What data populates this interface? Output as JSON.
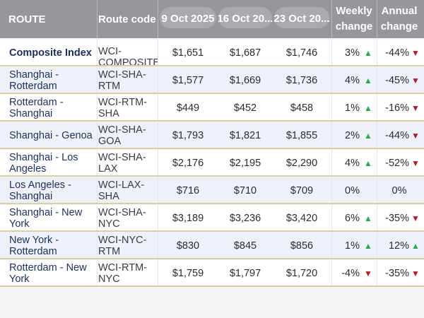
{
  "headers": {
    "route": "ROUTE",
    "code": "Route code",
    "d1": "9 Oct 2025",
    "d2": "16 Oct 20...",
    "d3": "23 Oct 20...",
    "weekly": [
      "Weekly",
      "change"
    ],
    "annual": [
      "Annual",
      "change"
    ]
  },
  "rows": [
    {
      "route": "Composite Index",
      "code": "WCI-COMPOSITE",
      "d1": "$1,651",
      "d2": "$1,687",
      "d3": "$1,746",
      "weekly": "3%",
      "weekly_dir": "up",
      "annual": "-44%",
      "annual_dir": "down",
      "bold": true
    },
    {
      "route": "Shanghai - Rotterdam",
      "code": "WCI-SHA-RTM",
      "d1": "$1,577",
      "d2": "$1,669",
      "d3": "$1,736",
      "weekly": "4%",
      "weekly_dir": "up",
      "annual": "-45%",
      "annual_dir": "down"
    },
    {
      "route": "Rotterdam - Shanghai",
      "code": "WCI-RTM-SHA",
      "d1": "$449",
      "d2": "$452",
      "d3": "$458",
      "weekly": "1%",
      "weekly_dir": "up",
      "annual": "-16%",
      "annual_dir": "down"
    },
    {
      "route": "Shanghai - Genoa",
      "code": "WCI-SHA-GOA",
      "d1": "$1,793",
      "d2": "$1,821",
      "d3": "$1,855",
      "weekly": "2%",
      "weekly_dir": "up",
      "annual": "-44%",
      "annual_dir": "down"
    },
    {
      "route": "Shanghai - Los Angeles",
      "code": "WCI-SHA-LAX",
      "d1": "$2,176",
      "d2": "$2,195",
      "d3": "$2,290",
      "weekly": "4%",
      "weekly_dir": "up",
      "annual": "-52%",
      "annual_dir": "down"
    },
    {
      "route": "Los Angeles - Shanghai",
      "code": "WCI-LAX-SHA",
      "d1": "$716",
      "d2": "$710",
      "d3": "$709",
      "weekly": "0%",
      "weekly_dir": "none",
      "annual": "0%",
      "annual_dir": "none"
    },
    {
      "route": "Shanghai - New York",
      "code": "WCI-SHA-NYC",
      "d1": "$3,189",
      "d2": "$3,236",
      "d3": "$3,420",
      "weekly": "6%",
      "weekly_dir": "up",
      "annual": "-35%",
      "annual_dir": "down"
    },
    {
      "route": "New York - Rotterdam",
      "code": "WCI-NYC-RTM",
      "d1": "$830",
      "d2": "$845",
      "d3": "$856",
      "weekly": "1%",
      "weekly_dir": "up",
      "annual": "12%",
      "annual_dir": "up"
    },
    {
      "route": "Rotterdam - New York",
      "code": "WCI-RTM-NYC",
      "d1": "$1,759",
      "d2": "$1,797",
      "d3": "$1,720",
      "weekly": "-4%",
      "weekly_dir": "down",
      "annual": "-35%",
      "annual_dir": "down"
    }
  ],
  "colors": {
    "up": "#2ea84a",
    "down": "#b01b2e",
    "header": "#96969c"
  }
}
